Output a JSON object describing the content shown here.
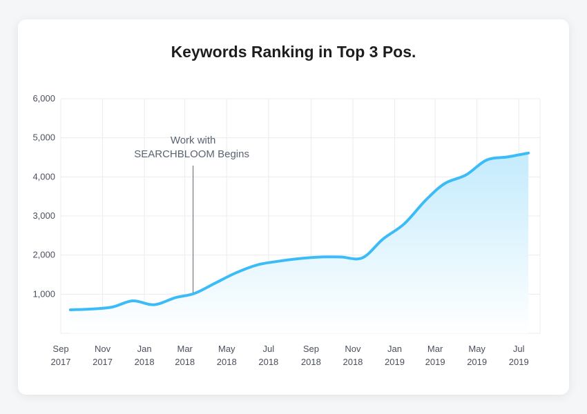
{
  "chart_data": {
    "type": "area",
    "title": "Keywords Ranking in Top 3 Pos.",
    "xlabel": "",
    "ylabel": "",
    "ylim": [
      0,
      6000
    ],
    "yticks": [
      1000,
      2000,
      3000,
      4000,
      5000,
      6000
    ],
    "ytick_labels": [
      "1,000",
      "2,000",
      "3,000",
      "4,000",
      "5,000",
      "6,000"
    ],
    "xlim": [
      "2017-09-01",
      "2019-08-01"
    ],
    "xticks": [
      {
        "date": "2017-09-01",
        "line1": "Sep",
        "line2": "2017"
      },
      {
        "date": "2017-11-01",
        "line1": "Nov",
        "line2": "2017"
      },
      {
        "date": "2018-01-01",
        "line1": "Jan",
        "line2": "2018"
      },
      {
        "date": "2018-03-01",
        "line1": "Mar",
        "line2": "2018"
      },
      {
        "date": "2018-05-01",
        "line1": "May",
        "line2": "2018"
      },
      {
        "date": "2018-07-01",
        "line1": "Jul",
        "line2": "2018"
      },
      {
        "date": "2018-09-01",
        "line1": "Sep",
        "line2": "2018"
      },
      {
        "date": "2018-11-01",
        "line1": "Nov",
        "line2": "2018"
      },
      {
        "date": "2019-01-01",
        "line1": "Jan",
        "line2": "2019"
      },
      {
        "date": "2019-03-01",
        "line1": "Mar",
        "line2": "2019"
      },
      {
        "date": "2019-05-01",
        "line1": "May",
        "line2": "2019"
      },
      {
        "date": "2019-07-01",
        "line1": "Jul",
        "line2": "2019"
      }
    ],
    "grid": true,
    "series": [
      {
        "color": "#3cbcf7",
        "points": [
          {
            "x": "2017-09-15",
            "y": 600
          },
          {
            "x": "2017-10-15",
            "y": 620
          },
          {
            "x": "2017-11-15",
            "y": 670
          },
          {
            "x": "2017-12-15",
            "y": 830
          },
          {
            "x": "2018-01-15",
            "y": 730
          },
          {
            "x": "2018-02-15",
            "y": 910
          },
          {
            "x": "2018-03-15",
            "y": 1020
          },
          {
            "x": "2018-04-15",
            "y": 1290
          },
          {
            "x": "2018-05-15",
            "y": 1550
          },
          {
            "x": "2018-06-15",
            "y": 1750
          },
          {
            "x": "2018-07-15",
            "y": 1840
          },
          {
            "x": "2018-08-15",
            "y": 1910
          },
          {
            "x": "2018-09-15",
            "y": 1950
          },
          {
            "x": "2018-10-15",
            "y": 1950
          },
          {
            "x": "2018-11-15",
            "y": 1930
          },
          {
            "x": "2018-12-15",
            "y": 2410
          },
          {
            "x": "2019-01-15",
            "y": 2800
          },
          {
            "x": "2019-02-15",
            "y": 3400
          },
          {
            "x": "2019-03-15",
            "y": 3830
          },
          {
            "x": "2019-04-15",
            "y": 4050
          },
          {
            "x": "2019-05-15",
            "y": 4430
          },
          {
            "x": "2019-06-15",
            "y": 4510
          },
          {
            "x": "2019-07-15",
            "y": 4610
          }
        ]
      }
    ],
    "annotation": {
      "x": "2018-03-15",
      "y": 1020,
      "text_line1": "Work with",
      "text_line2": "SEARCHBLOOM Begins"
    },
    "colors": {
      "line": "#3cbcf7",
      "fill_top": "#c4ebfd",
      "fill_bottom": "#ffffff",
      "grid": "#e9ecef",
      "annotation_line": "#5a5f6b"
    }
  }
}
